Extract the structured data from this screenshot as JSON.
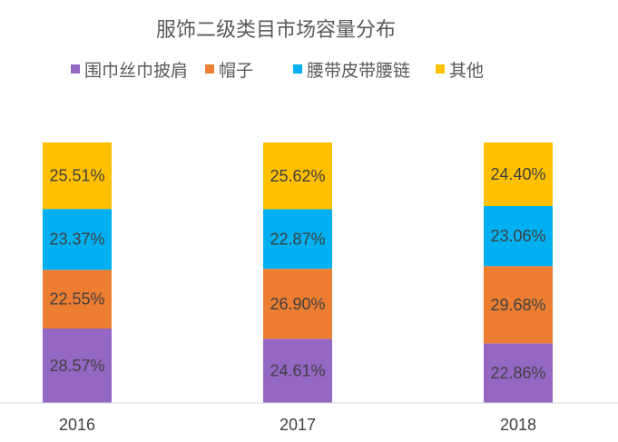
{
  "chart_data": {
    "type": "bar",
    "stacked": true,
    "title": "服饰二级类目市场容量分布",
    "categories": [
      "2016",
      "2017",
      "2018"
    ],
    "series": [
      {
        "name": "围巾丝巾披肩",
        "color": "#9467c4",
        "values": [
          28.57,
          24.61,
          22.86
        ],
        "labels": [
          "28.57%",
          "24.61%",
          "22.86%"
        ]
      },
      {
        "name": "帽子",
        "color": "#ed7d31",
        "values": [
          22.55,
          26.9,
          29.68
        ],
        "labels": [
          "22.55%",
          "26.90%",
          "29.68%"
        ]
      },
      {
        "name": "腰带皮带腰链",
        "color": "#00b0f0",
        "values": [
          23.37,
          22.87,
          23.06
        ],
        "labels": [
          "23.37%",
          "22.87%",
          "23.06%"
        ]
      },
      {
        "name": "其他",
        "color": "#ffc000",
        "values": [
          25.51,
          25.62,
          24.4
        ],
        "labels": [
          "25.51%",
          "25.62%",
          "24.40%"
        ]
      }
    ],
    "ylim": [
      0,
      100
    ],
    "legend_position": "top",
    "grid": false,
    "xlabel": "",
    "ylabel": ""
  }
}
